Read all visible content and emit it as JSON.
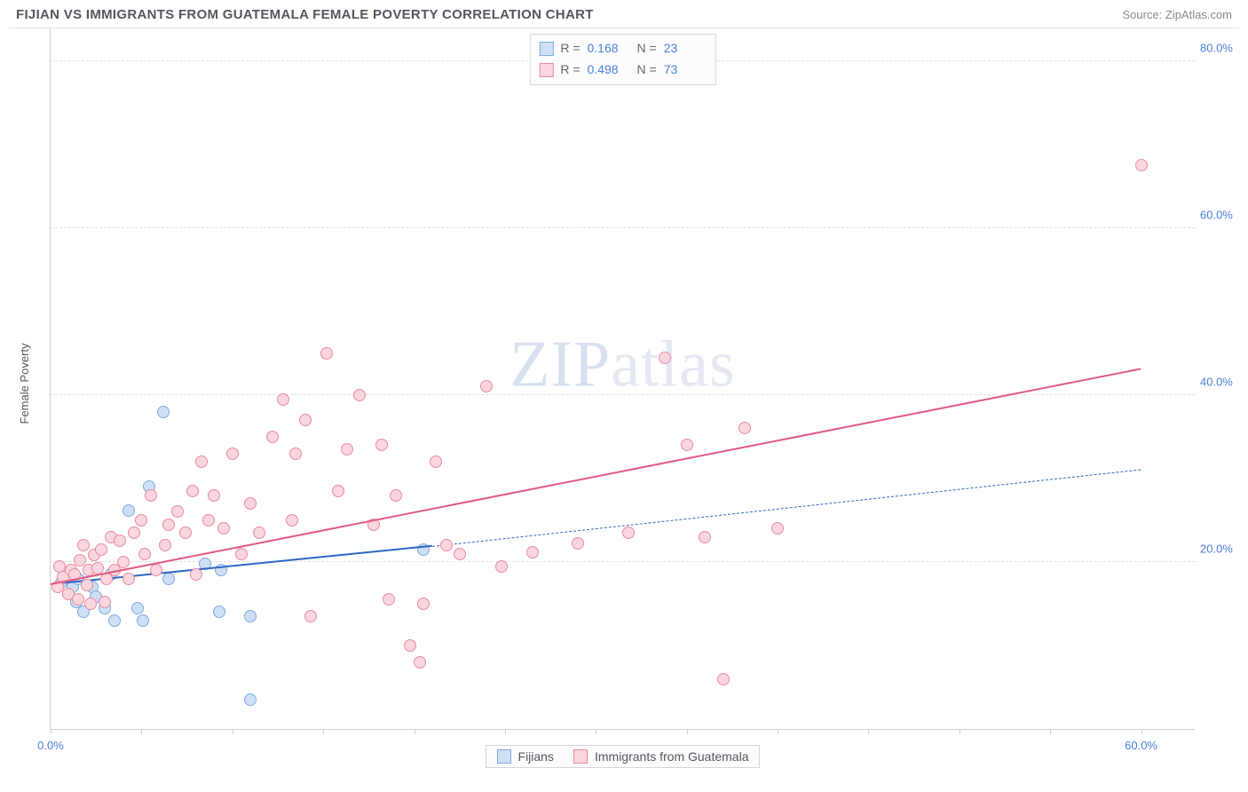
{
  "title": "FIJIAN VS IMMIGRANTS FROM GUATEMALA FEMALE POVERTY CORRELATION CHART",
  "source": "Source: ZipAtlas.com",
  "watermark_a": "ZIP",
  "watermark_b": "atlas",
  "ylabel": "Female Poverty",
  "chart": {
    "type": "scatter",
    "xlim": [
      0,
      63
    ],
    "ylim": [
      0,
      84
    ],
    "xticks": [
      0,
      5,
      10,
      15,
      20,
      25,
      30,
      35,
      40,
      45,
      50,
      55,
      60
    ],
    "xtick_labels": {
      "0": "0.0%",
      "60": "60.0%"
    },
    "yticks": [
      20,
      40,
      60,
      80
    ],
    "ytick_labels": {
      "20": "20.0%",
      "40": "40.0%",
      "60": "60.0%",
      "80": "80.0%"
    },
    "grid_color": "#e0e0e4",
    "axis_color": "#cfcfd4",
    "tick_label_color": "#4a7fd8"
  },
  "series": [
    {
      "id": "fijians",
      "label": "Fijians",
      "fill": "#cfe0f6",
      "stroke": "#7fa8e0",
      "line_color": "#2f66c4",
      "r_label": "R =",
      "r_value": "0.168",
      "n_label": "N =",
      "n_value": "23",
      "trend": {
        "x1": 0,
        "y1": 17.2,
        "x2": 21,
        "y2": 21.8,
        "dash_to_x": 60,
        "dash_to_y": 31.0
      },
      "points": [
        [
          0.6,
          17.5
        ],
        [
          1.0,
          18.8
        ],
        [
          1.2,
          17.0
        ],
        [
          1.4,
          15.2
        ],
        [
          1.5,
          18.0
        ],
        [
          1.8,
          14.0
        ],
        [
          2.3,
          17.0
        ],
        [
          2.5,
          15.8
        ],
        [
          3.0,
          14.5
        ],
        [
          3.3,
          18.5
        ],
        [
          3.5,
          13.0
        ],
        [
          4.3,
          26.2
        ],
        [
          4.8,
          14.5
        ],
        [
          5.1,
          13.0
        ],
        [
          5.4,
          29.0
        ],
        [
          6.2,
          38.0
        ],
        [
          6.5,
          18.0
        ],
        [
          8.5,
          19.8
        ],
        [
          9.3,
          14.0
        ],
        [
          9.4,
          19.0
        ],
        [
          11.0,
          3.5
        ],
        [
          11.0,
          13.5
        ],
        [
          20.5,
          21.5
        ]
      ]
    },
    {
      "id": "guatemala",
      "label": "Immigrants from Guatemala",
      "fill": "#fad6de",
      "stroke": "#e88aa0",
      "line_color": "#e05a80",
      "r_label": "R =",
      "r_value": "0.498",
      "n_label": "N =",
      "n_value": "73",
      "trend": {
        "x1": 0,
        "y1": 17.2,
        "x2": 60,
        "y2": 43.0
      },
      "points": [
        [
          0.4,
          17.0
        ],
        [
          0.5,
          19.5
        ],
        [
          0.7,
          18.2
        ],
        [
          1.0,
          16.2
        ],
        [
          1.1,
          19.0
        ],
        [
          1.3,
          18.5
        ],
        [
          1.5,
          15.5
        ],
        [
          1.6,
          20.2
        ],
        [
          1.8,
          22.0
        ],
        [
          2.0,
          17.2
        ],
        [
          2.1,
          19.0
        ],
        [
          2.2,
          15.0
        ],
        [
          2.4,
          20.8
        ],
        [
          2.6,
          19.3
        ],
        [
          2.8,
          21.5
        ],
        [
          3.0,
          15.2
        ],
        [
          3.1,
          18.0
        ],
        [
          3.3,
          23.0
        ],
        [
          3.5,
          19.0
        ],
        [
          3.8,
          22.5
        ],
        [
          4.0,
          20.0
        ],
        [
          4.3,
          18.0
        ],
        [
          4.6,
          23.5
        ],
        [
          5.0,
          25.0
        ],
        [
          5.2,
          21.0
        ],
        [
          5.5,
          28.0
        ],
        [
          5.8,
          19.0
        ],
        [
          6.3,
          22.0
        ],
        [
          6.5,
          24.5
        ],
        [
          7.0,
          26.0
        ],
        [
          7.4,
          23.5
        ],
        [
          7.8,
          28.5
        ],
        [
          8.0,
          18.5
        ],
        [
          8.3,
          32.0
        ],
        [
          8.7,
          25.0
        ],
        [
          9.0,
          28.0
        ],
        [
          9.5,
          24.0
        ],
        [
          10.0,
          33.0
        ],
        [
          10.5,
          21.0
        ],
        [
          11.0,
          27.0
        ],
        [
          11.5,
          23.5
        ],
        [
          12.2,
          35.0
        ],
        [
          12.8,
          39.5
        ],
        [
          13.3,
          25.0
        ],
        [
          13.5,
          33.0
        ],
        [
          14.0,
          37.0
        ],
        [
          14.3,
          13.5
        ],
        [
          15.2,
          45.0
        ],
        [
          15.8,
          28.5
        ],
        [
          16.3,
          33.5
        ],
        [
          17.0,
          40.0
        ],
        [
          17.8,
          24.5
        ],
        [
          18.2,
          34.0
        ],
        [
          18.6,
          15.5
        ],
        [
          19.0,
          28.0
        ],
        [
          19.8,
          10.0
        ],
        [
          20.3,
          8.0
        ],
        [
          20.5,
          15.0
        ],
        [
          21.2,
          32.0
        ],
        [
          21.8,
          22.0
        ],
        [
          22.5,
          21.0
        ],
        [
          24.0,
          41.0
        ],
        [
          24.8,
          19.5
        ],
        [
          26.5,
          21.2
        ],
        [
          29.0,
          22.2
        ],
        [
          31.8,
          23.5
        ],
        [
          33.8,
          44.5
        ],
        [
          35.0,
          34.0
        ],
        [
          36.0,
          23.0
        ],
        [
          37.0,
          6.0
        ],
        [
          38.2,
          36.0
        ],
        [
          40.0,
          24.0
        ],
        [
          60.0,
          67.5
        ]
      ]
    }
  ]
}
